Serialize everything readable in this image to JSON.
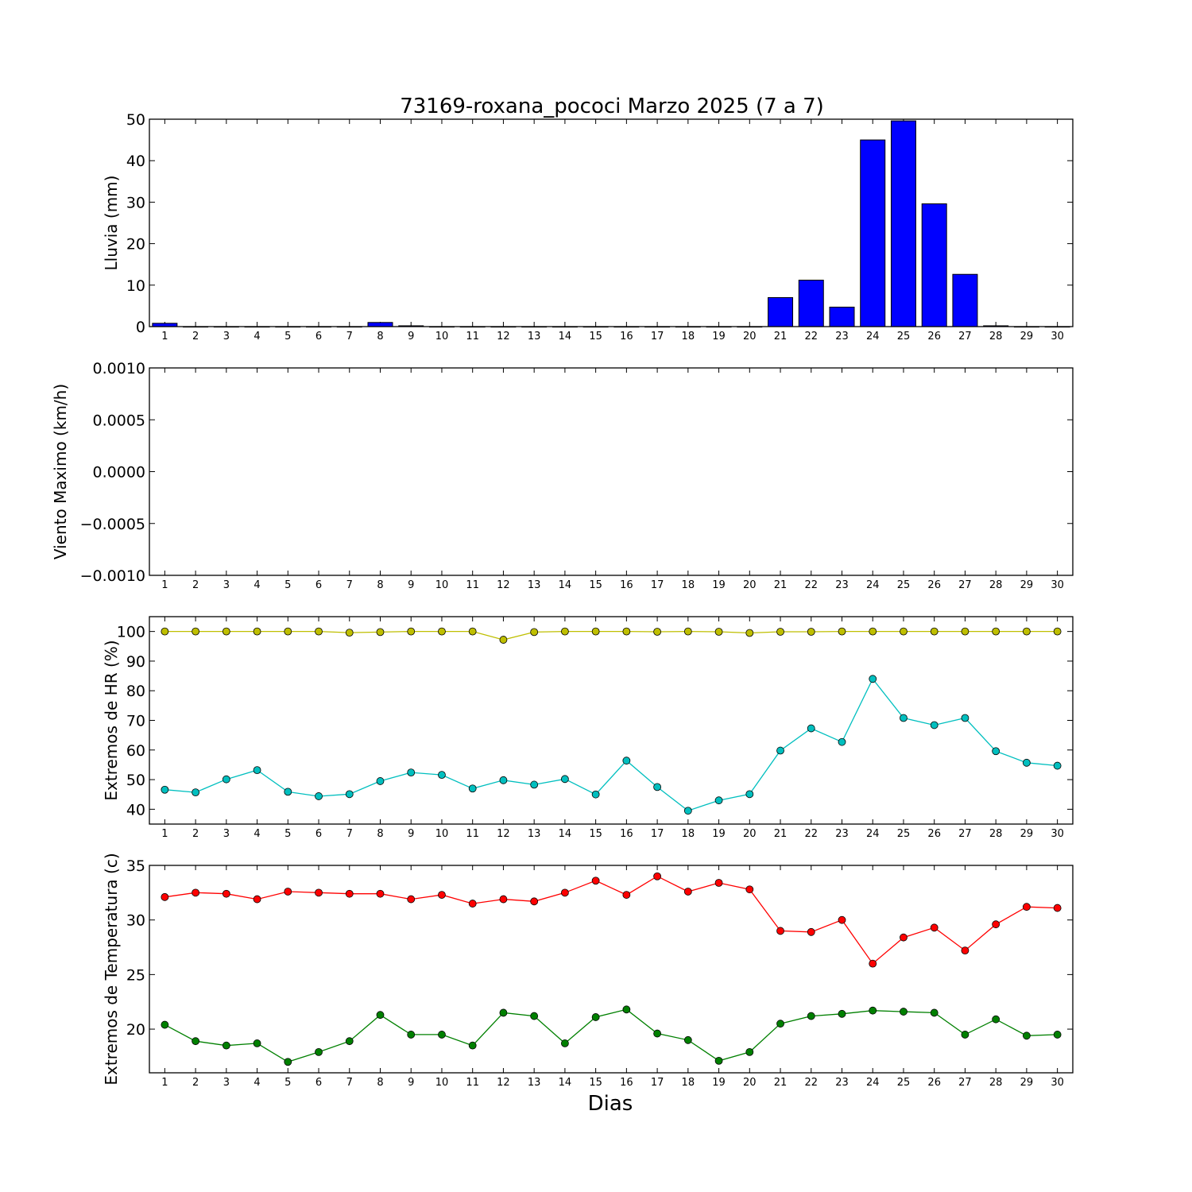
{
  "title": "73169-roxana_pococi Marzo 2025  (7 a 7)",
  "x_label": "Dias",
  "days": [
    1,
    2,
    3,
    4,
    5,
    6,
    7,
    8,
    9,
    10,
    11,
    12,
    13,
    14,
    15,
    16,
    17,
    18,
    19,
    20,
    21,
    22,
    23,
    24,
    25,
    26,
    27,
    28,
    29,
    30
  ],
  "chart_data": [
    {
      "type": "bar",
      "ylabel": "Lluvia (mm)",
      "ylim": [
        0,
        50
      ],
      "yticks": [
        "0",
        "10",
        "20",
        "30",
        "40",
        "50"
      ],
      "grid": false,
      "series": [
        {
          "color": "#0000ff",
          "values": [
            0.8,
            0,
            0,
            0,
            0,
            0,
            0,
            1.0,
            0.2,
            0,
            0,
            0,
            0,
            0,
            0,
            0,
            0,
            0,
            0,
            0,
            7.0,
            11.2,
            4.7,
            45.0,
            49.6,
            29.6,
            12.6,
            0.2,
            0,
            0
          ]
        }
      ]
    },
    {
      "type": "line",
      "ylabel": "Viento Maximo (km/h)",
      "ylim": [
        -0.001,
        0.001
      ],
      "yticks": [
        "−0.0010",
        "−0.0005",
        "0.0000",
        "0.0005",
        "0.0010"
      ],
      "grid": false,
      "series": []
    },
    {
      "type": "line",
      "ylabel": "Extremos de HR (%)",
      "ylim": [
        35,
        105
      ],
      "yticks": [
        "40",
        "50",
        "60",
        "70",
        "80",
        "90",
        "100"
      ],
      "grid": false,
      "series": [
        {
          "color": "#bfbf00",
          "values": [
            100,
            100,
            100,
            100,
            100,
            100,
            99.6,
            99.8,
            100,
            100,
            100,
            97.2,
            99.8,
            100,
            100,
            100,
            99.9,
            100,
            99.9,
            99.5,
            99.9,
            99.9,
            100,
            100,
            100,
            100,
            100,
            100,
            100,
            100
          ]
        },
        {
          "color": "#00bfbf",
          "values": [
            46.6,
            45.7,
            50.1,
            53.2,
            45.9,
            44.4,
            45.1,
            49.5,
            52.4,
            51.6,
            47.0,
            49.8,
            48.3,
            50.2,
            45.0,
            56.4,
            47.5,
            39.5,
            43.0,
            45.1,
            59.8,
            67.3,
            62.7,
            84.0,
            70.8,
            68.4,
            70.8,
            59.6,
            55.7,
            54.7
          ]
        }
      ]
    },
    {
      "type": "line",
      "ylabel": "Extremos de Temperatura (c)",
      "ylim": [
        16,
        35
      ],
      "yticks": [
        "20",
        "25",
        "30",
        "35"
      ],
      "grid": false,
      "series": [
        {
          "color": "#ff0000",
          "values": [
            32.1,
            32.5,
            32.4,
            31.9,
            32.6,
            32.5,
            32.4,
            32.4,
            31.9,
            32.3,
            31.5,
            31.9,
            31.7,
            32.5,
            33.6,
            32.3,
            34.0,
            32.6,
            33.4,
            32.8,
            29.0,
            28.9,
            30.0,
            26.0,
            28.4,
            29.3,
            27.2,
            29.6,
            31.2,
            31.1
          ]
        },
        {
          "color": "#008000",
          "values": [
            20.4,
            18.9,
            18.5,
            18.7,
            17.0,
            17.9,
            18.9,
            21.3,
            19.5,
            19.5,
            18.5,
            21.5,
            21.2,
            18.7,
            21.1,
            21.8,
            19.6,
            19.0,
            17.1,
            17.9,
            20.5,
            21.2,
            21.4,
            21.7,
            21.6,
            21.5,
            19.5,
            20.9,
            19.4,
            19.5
          ]
        }
      ]
    }
  ]
}
